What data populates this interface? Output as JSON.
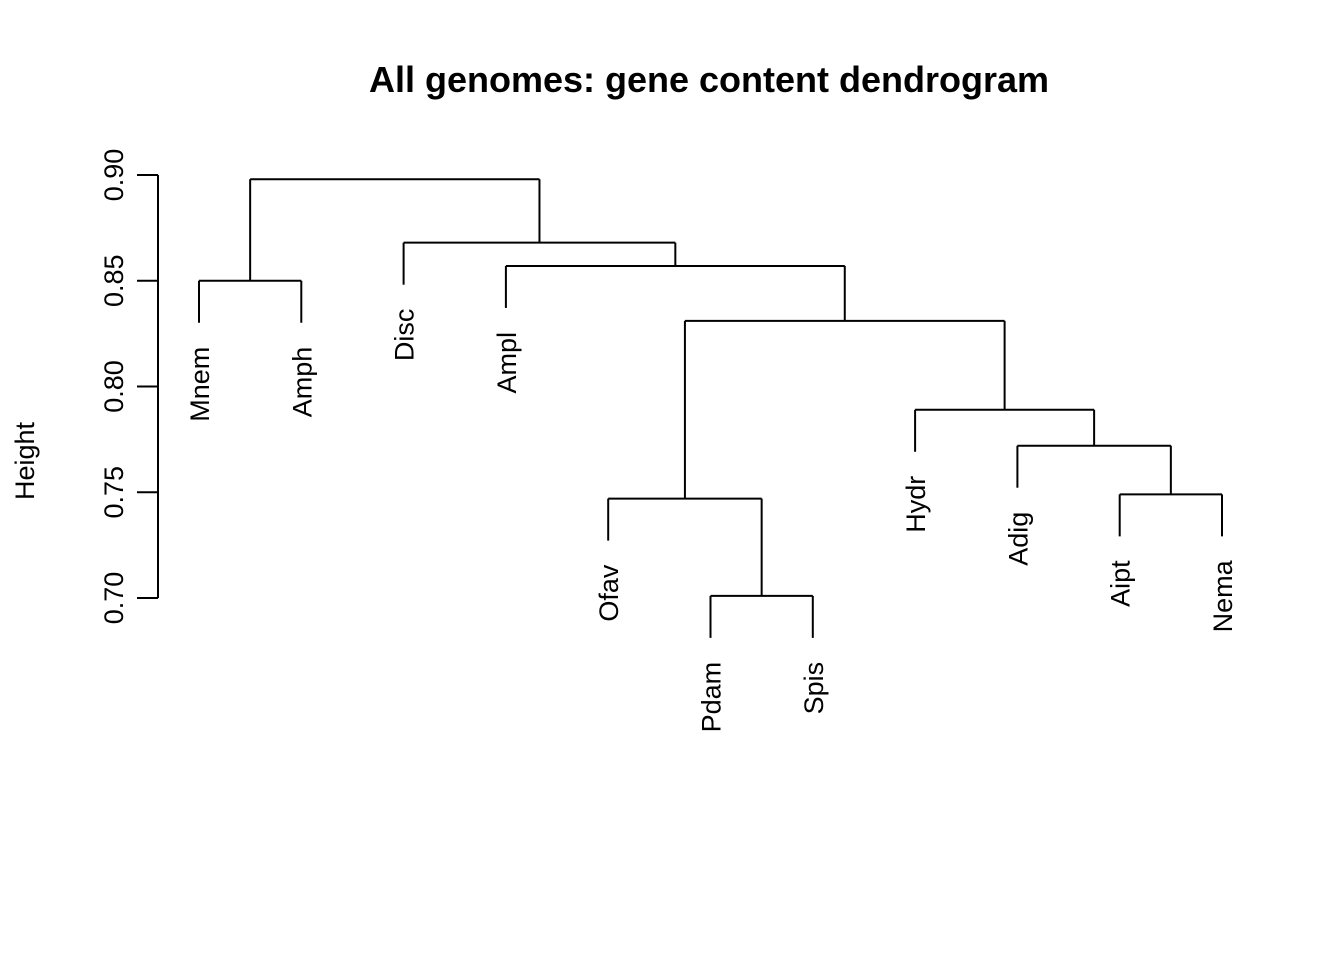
{
  "chart_data": {
    "type": "dendrogram",
    "title": "All genomes: gene content dendrogram",
    "ylabel": "Height",
    "ylim": [
      0.7,
      0.9
    ],
    "yticks": [
      0.7,
      0.75,
      0.8,
      0.85,
      0.9
    ],
    "ytick_labels": [
      "0.70",
      "0.75",
      "0.80",
      "0.85",
      "0.90"
    ],
    "leaves": [
      "Mnem",
      "Amph",
      "Disc",
      "Ampl",
      "Ofav",
      "Pdam",
      "Spis",
      "Hydr",
      "Adig",
      "Aipt",
      "Nema"
    ],
    "merges": [
      {
        "a": "L:Mnem",
        "b": "L:Amph",
        "height": 0.85
      },
      {
        "a": "L:Pdam",
        "b": "L:Spis",
        "height": 0.701
      },
      {
        "a": "L:Ofav",
        "b": "M:1",
        "height": 0.747
      },
      {
        "a": "L:Aipt",
        "b": "L:Nema",
        "height": 0.749
      },
      {
        "a": "L:Adig",
        "b": "M:3",
        "height": 0.772
      },
      {
        "a": "L:Hydr",
        "b": "M:4",
        "height": 0.789
      },
      {
        "a": "M:2",
        "b": "M:5",
        "height": 0.831
      },
      {
        "a": "L:Ampl",
        "b": "M:6",
        "height": 0.857
      },
      {
        "a": "L:Disc",
        "b": "M:7",
        "height": 0.868
      },
      {
        "a": "M:0",
        "b": "M:8",
        "height": 0.898
      }
    ]
  }
}
